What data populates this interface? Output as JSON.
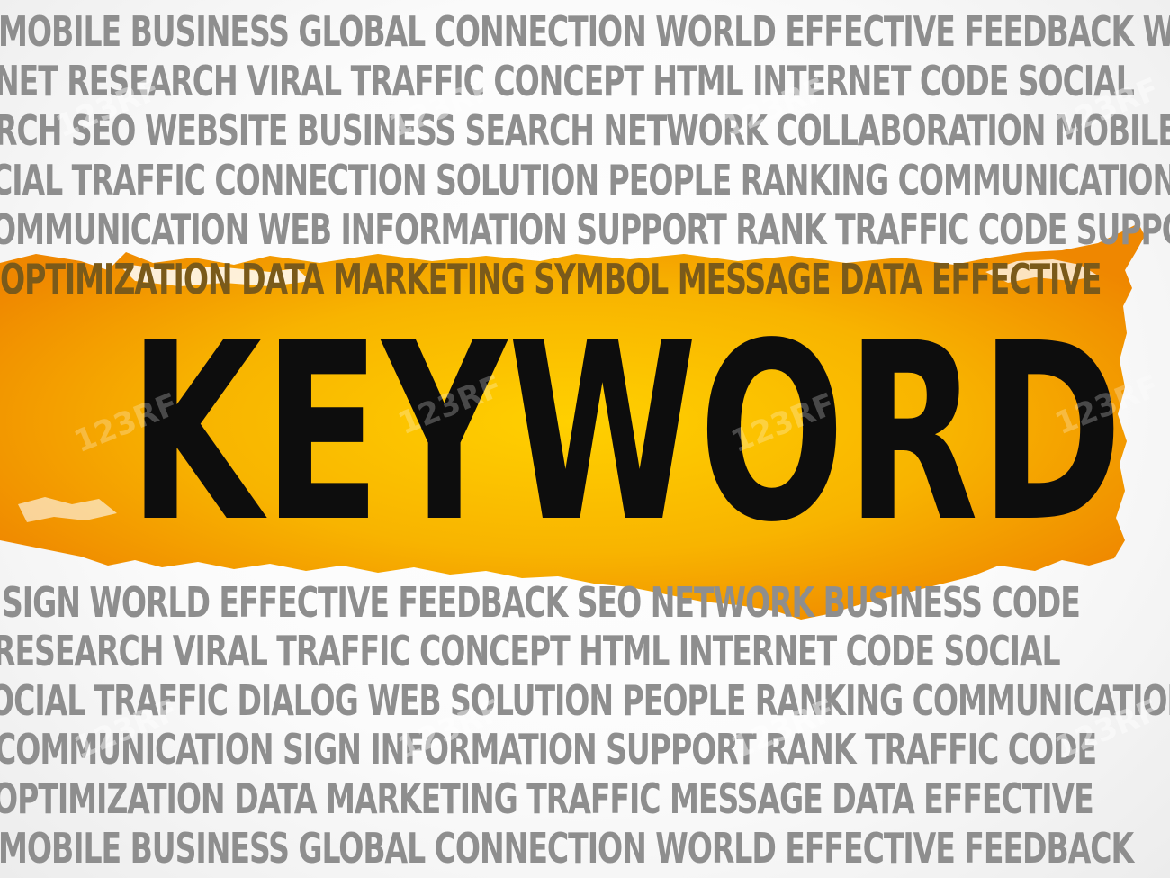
{
  "rows": [
    "MOBILE BUSINESS GLOBAL CONNECTION WORLD EFFECTIVE FEEDBACK WORLD",
    "NET RESEARCH VIRAL TRAFFIC CONCEPT HTML INTERNET CODE SOCIAL",
    "RCH SEO WEBSITE BUSINESS SEARCH NETWORK COLLABORATION MOBILE",
    "CIAL TRAFFIC CONNECTION SOLUTION PEOPLE RANKING COMMUNICATION",
    "OMMUNICATION WEB INFORMATION SUPPORT RANK TRAFFIC CODE SUPPORT",
    "OPTIMIZATION DATA MARKETING SYMBOL MESSAGE DATA EFFECTIVE",
    "SIGN WORLD EFFECTIVE FEEDBACK SEO NETWORK BUSINESS CODE",
    "RESEARCH VIRAL TRAFFIC CONCEPT HTML INTERNET CODE SOCIAL",
    "OCIAL TRAFFIC DIALOG WEB SOLUTION PEOPLE RANKING COMMUNICATION",
    "COMMUNICATION SIGN INFORMATION SUPPORT RANK TRAFFIC CODE",
    "OPTIMIZATION DATA MARKETING TRAFFIC MESSAGE DATA EFFECTIVE",
    "MOBILE BUSINESS GLOBAL CONNECTION WORLD EFFECTIVE FEEDBACK"
  ],
  "keyword": "KEYWORD",
  "watermark": "123RF",
  "colors": {
    "banner_center": "#ffd000",
    "banner_edge": "#f08a00",
    "word_gray": "#8e8e8e",
    "keyword_text": "#0d0d0d"
  }
}
